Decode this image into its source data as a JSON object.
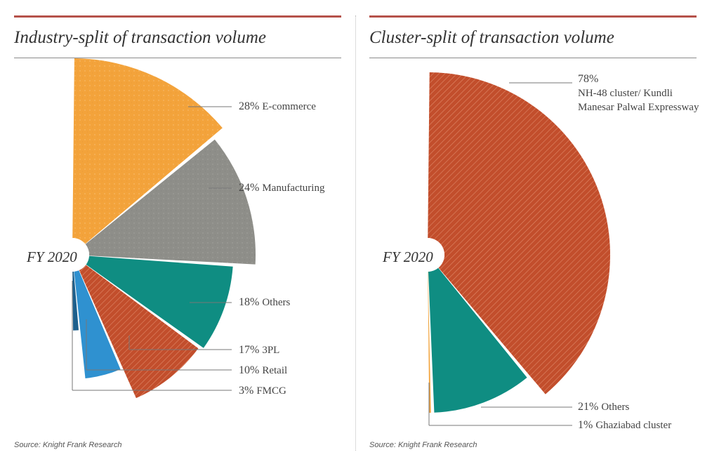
{
  "left": {
    "title": "Industry-split of transaction volume",
    "source": "Source: Knight Frank Research",
    "center_label": "FY 2020"
  },
  "right": {
    "title": "Cluster-split of transaction volume",
    "source": "Source: Knight Frank Research",
    "center_label": "FY 2020"
  },
  "chart_data": [
    {
      "type": "pie",
      "title": "Industry-split of transaction volume",
      "center_label": "FY 2020",
      "slices": [
        {
          "label": "E-commerce",
          "value": 28,
          "pct_text": "28%",
          "color": "#f3a33b",
          "pattern": "dots"
        },
        {
          "label": "Manufacturing",
          "value": 24,
          "pct_text": "24%",
          "color": "#8e8e89",
          "pattern": "dots"
        },
        {
          "label": "Others",
          "value": 18,
          "pct_text": "18%",
          "color": "#0f8d82",
          "pattern": "none"
        },
        {
          "label": "3PL",
          "value": 17,
          "pct_text": "17%",
          "color": "#c24e2c",
          "pattern": "hatch"
        },
        {
          "label": "Retail",
          "value": 10,
          "pct_text": "10%",
          "color": "#2f91d0",
          "pattern": "none"
        },
        {
          "label": "FMCG",
          "value": 3,
          "pct_text": "3%",
          "color": "#1d5f8c",
          "pattern": "none"
        }
      ]
    },
    {
      "type": "pie",
      "title": "Cluster-split of transaction volume",
      "center_label": "FY 2020",
      "slices": [
        {
          "label": "NH-48 cluster/ Kundli Manesar Palwal Expressway",
          "value": 78,
          "pct_text": "78%",
          "color": "#c24e2c",
          "pattern": "hatch"
        },
        {
          "label": "Others",
          "value": 21,
          "pct_text": "21%",
          "color": "#0f8d82",
          "pattern": "none"
        },
        {
          "label": "Ghaziabad cluster",
          "value": 1,
          "pct_text": "1%",
          "color": "#f3a33b",
          "pattern": "none"
        }
      ]
    }
  ]
}
